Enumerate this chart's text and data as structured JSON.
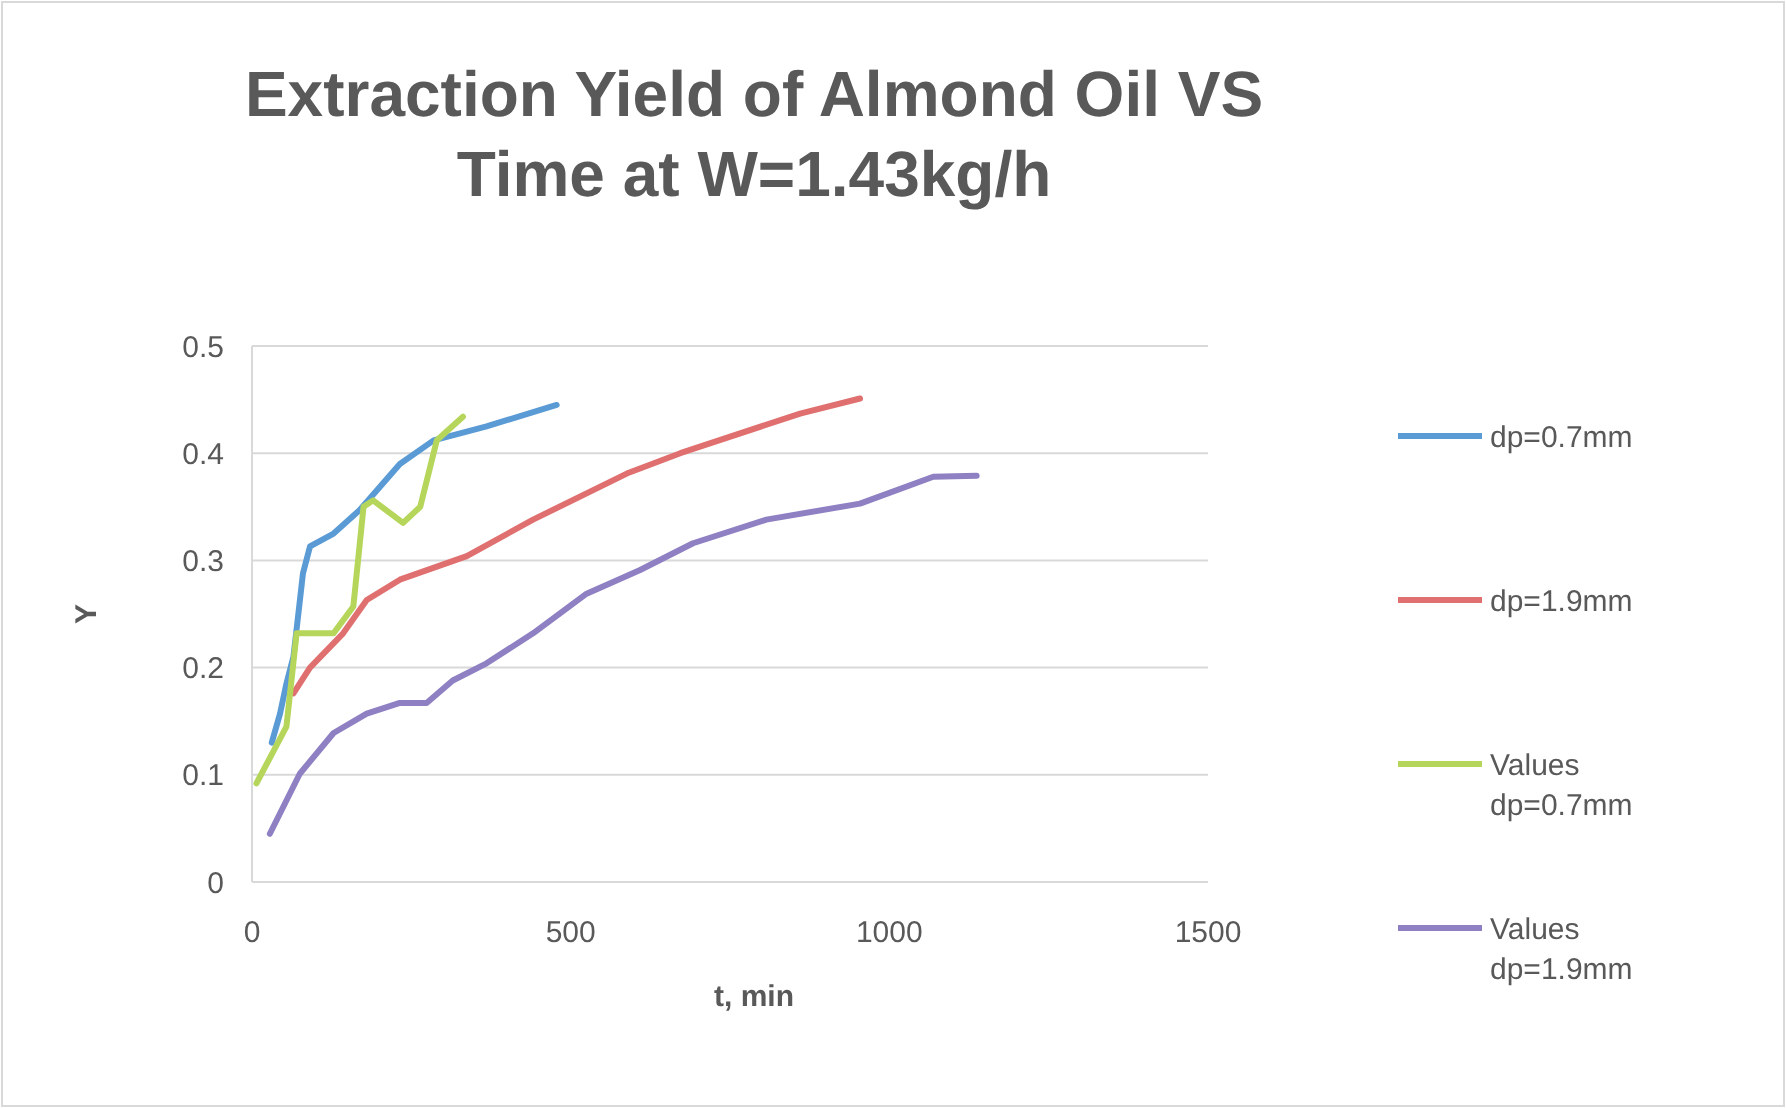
{
  "chart_data": {
    "type": "line",
    "title": "Extraction Yield of Almond Oil VS Time at W=1.43kg/h",
    "xlabel": "t, min",
    "ylabel": "Y",
    "xlim": [
      0,
      1500
    ],
    "xticks": [
      0,
      500,
      1000,
      1500
    ],
    "ylim": [
      0,
      0.5
    ],
    "yticks": [
      0,
      0.1,
      0.2,
      0.3,
      0.4,
      0.5
    ],
    "grid": "y",
    "legend": "right",
    "marker": "none",
    "line_style": "solid",
    "series": [
      {
        "name": "dp=0.7mm",
        "color": "#5b9bd5",
        "x": [
          31,
          44,
          54,
          65,
          80,
          91,
          128,
          169,
          232,
          285,
          368,
          478
        ],
        "values": [
          0.13,
          0.157,
          0.185,
          0.21,
          0.288,
          0.313,
          0.325,
          0.347,
          0.39,
          0.412,
          0.425,
          0.445
        ]
      },
      {
        "name": "dp=1.9mm",
        "color": "#e07070",
        "x": [
          65,
          91,
          143,
          180,
          232,
          337,
          441,
          588,
          672,
          860,
          954
        ],
        "values": [
          0.176,
          0.2,
          0.232,
          0.263,
          0.282,
          0.304,
          0.338,
          0.381,
          0.4,
          0.437,
          0.451
        ]
      },
      {
        "name": "Values dp=0.7mm",
        "color": "#b5d65a",
        "x": [
          7,
          54,
          70,
          128,
          159,
          175,
          190,
          237,
          264,
          290,
          331
        ],
        "values": [
          0.092,
          0.145,
          0.232,
          0.232,
          0.257,
          0.35,
          0.356,
          0.335,
          0.35,
          0.412,
          0.434
        ]
      },
      {
        "name": "Values dp=1.9mm",
        "color": "#8e80c2",
        "x": [
          28,
          75,
          128,
          180,
          232,
          274,
          315,
          368,
          441,
          525,
          609,
          692,
          807,
          954,
          1069,
          1137
        ],
        "values": [
          0.045,
          0.101,
          0.139,
          0.157,
          0.167,
          0.167,
          0.188,
          0.204,
          0.232,
          0.269,
          0.291,
          0.316,
          0.338,
          0.353,
          0.378,
          0.379
        ]
      }
    ]
  }
}
